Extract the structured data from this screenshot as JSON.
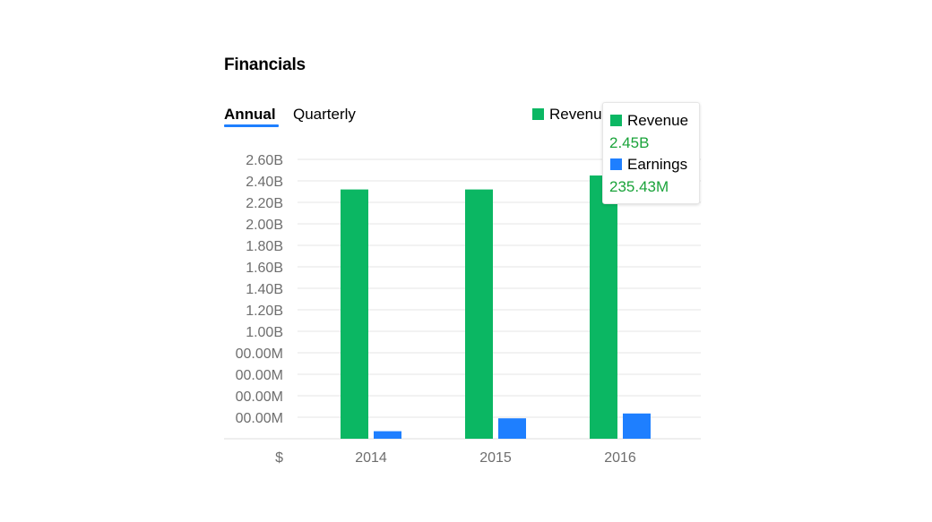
{
  "header": {
    "title": "Financials"
  },
  "tabs": [
    {
      "label": "Annual",
      "active": true
    },
    {
      "label": "Quarterly",
      "active": false
    }
  ],
  "legend": {
    "items": [
      {
        "label": "Revenue",
        "color": "#0bb763"
      }
    ]
  },
  "tooltip": {
    "series": [
      {
        "name": "Revenue",
        "value": "2.45B",
        "color": "#0bb763"
      },
      {
        "name": "Earnings",
        "value": "235.43M",
        "color": "#1e7fff"
      }
    ]
  },
  "chart_data": {
    "type": "bar",
    "categories": [
      "2014",
      "2015",
      "2016"
    ],
    "series": [
      {
        "name": "Revenue",
        "color": "#0bb763",
        "values": [
          2.32,
          2.32,
          2.45
        ]
      },
      {
        "name": "Earnings",
        "color": "#1e7fff",
        "values": [
          0.07,
          0.19,
          0.235
        ]
      }
    ],
    "ylim": [
      0,
      2.6
    ],
    "y_ticks": [
      {
        "value": 0.2,
        "label": "00.00M"
      },
      {
        "value": 0.4,
        "label": "00.00M"
      },
      {
        "value": 0.6,
        "label": "00.00M"
      },
      {
        "value": 0.8,
        "label": "00.00M"
      },
      {
        "value": 1.0,
        "label": "1.00B"
      },
      {
        "value": 1.2,
        "label": "1.20B"
      },
      {
        "value": 1.4,
        "label": "1.40B"
      },
      {
        "value": 1.6,
        "label": "1.60B"
      },
      {
        "value": 1.8,
        "label": "1.80B"
      },
      {
        "value": 2.0,
        "label": "2.00B"
      },
      {
        "value": 2.2,
        "label": "2.20B"
      },
      {
        "value": 2.4,
        "label": "2.40B"
      },
      {
        "value": 2.6,
        "label": "2.60B"
      }
    ],
    "currency_label": "$",
    "grid": true
  }
}
